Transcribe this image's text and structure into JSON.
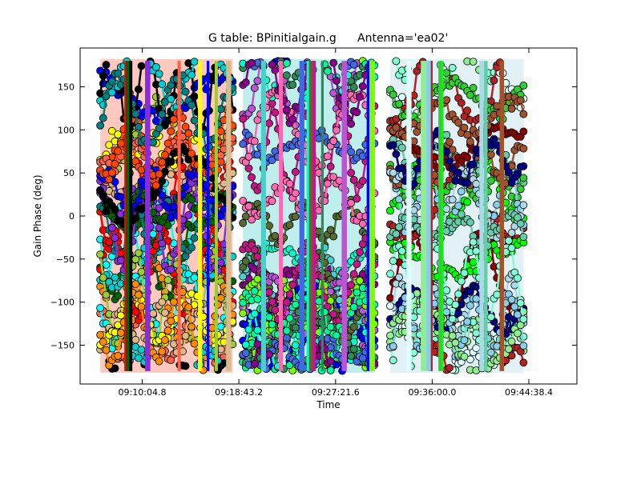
{
  "chart_data": {
    "type": "scatter",
    "title": "G table: BPinitialgain.g",
    "title_antenna": "Antenna='ea02'",
    "xlabel": "Time",
    "ylabel": "Gain Phase (deg)",
    "xlim": [
      "09:04:32",
      "09:48:56"
    ],
    "ylim": [
      -195,
      195
    ],
    "x_ticks": [
      "09:10:04.8",
      "09:18:43.2",
      "09:27:21.6",
      "09:36:00.0",
      "09:44:38.4"
    ],
    "y_ticks": [
      150,
      100,
      50,
      0,
      -50,
      -100,
      -150
    ],
    "y_tick_labels": [
      "150",
      "100",
      "50",
      "0",
      "−50",
      "−100",
      "−150"
    ],
    "grid": false,
    "legend": "none",
    "scans": [
      {
        "start": "09:06:20",
        "end": "09:18:10",
        "palette": [
          "#ff0000",
          "#00ffff",
          "#ff6347",
          "#9acd32",
          "#deb887",
          "#8a2be2",
          "#ffff00",
          "#006400",
          "#0000ff",
          "#000000",
          "#ff8c00",
          "#00ced1",
          "#ff4500",
          "#008080"
        ]
      },
      {
        "start": "09:19:05",
        "end": "09:30:50",
        "palette": [
          "#0000ff",
          "#00ffcc",
          "#48d1cc",
          "#556b2f",
          "#ba55d3",
          "#7cfc00",
          "#c71585",
          "#2e8b57",
          "#ff69b4",
          "#4169e1",
          "#00fa9a",
          "#8b008b"
        ]
      },
      {
        "start": "09:32:15",
        "end": "09:44:10",
        "palette": [
          "#8b0000",
          "#00ff00",
          "#add8e6",
          "#66cdaa",
          "#e0ffff",
          "#b22222",
          "#32cd32",
          "#87ceeb",
          "#a0522d",
          "#90ee90",
          "#7fffd4",
          "#000080"
        ]
      }
    ]
  }
}
